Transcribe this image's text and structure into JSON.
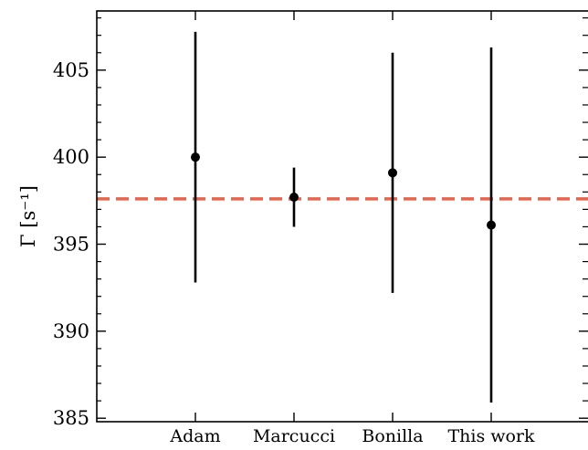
{
  "chart_data": {
    "type": "scatter",
    "title": "",
    "xlabel": "",
    "ylabel": "Γ [s⁻¹]",
    "categories": [
      "Adam",
      "Marcucci",
      "Bonilla",
      "This work"
    ],
    "series": [
      {
        "values": [
          400.0,
          397.7,
          399.1,
          396.1
        ],
        "errors": [
          7.2,
          1.7,
          6.9,
          10.2
        ]
      }
    ],
    "reference_line": {
      "value": 397.6,
      "color": "#e8644a",
      "style": "dashed"
    },
    "ylim": [
      384.8,
      408.4
    ],
    "yticks": [
      385,
      390,
      395,
      400,
      405
    ],
    "minor_tick_step": 1,
    "grid": false,
    "legend": "none",
    "colors": {
      "points": "#000000",
      "errorbars": "#000000"
    }
  }
}
